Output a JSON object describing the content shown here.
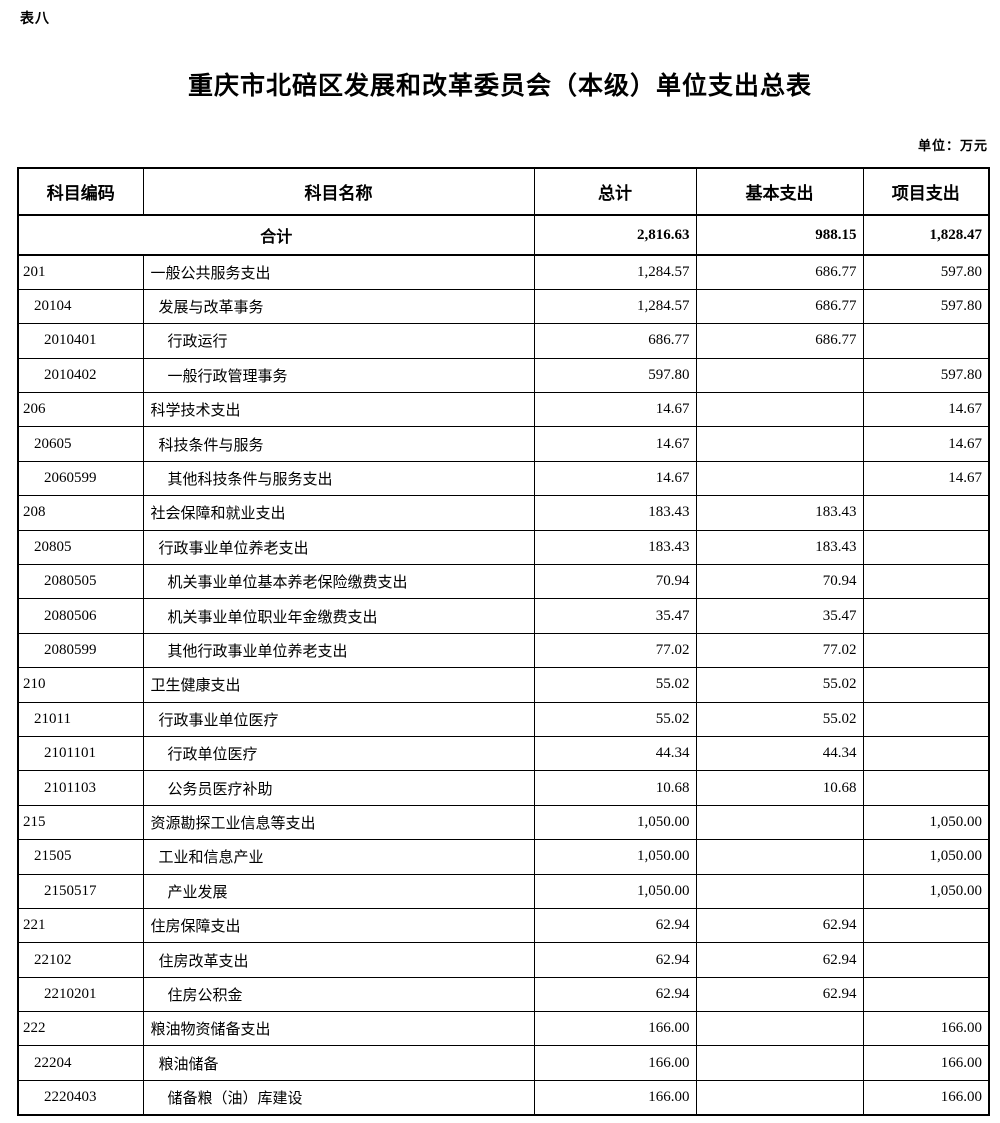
{
  "page": {
    "sheet_label": "表八",
    "title": "重庆市北碚区发展和改革委员会（本级）单位支出总表",
    "unit_note": "单位：万元"
  },
  "table": {
    "columns": [
      "科目编码",
      "科目名称",
      "总计",
      "基本支出",
      "项目支出"
    ],
    "total_row": {
      "label": "合计",
      "total": "2,816.63",
      "basic": "988.15",
      "project": "1,828.47"
    },
    "rows": [
      {
        "code": "201",
        "name": "一般公共服务支出",
        "level": 1,
        "total": "1,284.57",
        "basic": "686.77",
        "project": "597.80"
      },
      {
        "code": "20104",
        "name": "发展与改革事务",
        "level": 2,
        "total": "1,284.57",
        "basic": "686.77",
        "project": "597.80"
      },
      {
        "code": "2010401",
        "name": "行政运行",
        "level": 3,
        "total": "686.77",
        "basic": "686.77",
        "project": ""
      },
      {
        "code": "2010402",
        "name": "一般行政管理事务",
        "level": 3,
        "total": "597.80",
        "basic": "",
        "project": "597.80"
      },
      {
        "code": "206",
        "name": "科学技术支出",
        "level": 1,
        "total": "14.67",
        "basic": "",
        "project": "14.67"
      },
      {
        "code": "20605",
        "name": "科技条件与服务",
        "level": 2,
        "total": "14.67",
        "basic": "",
        "project": "14.67"
      },
      {
        "code": "2060599",
        "name": "其他科技条件与服务支出",
        "level": 3,
        "total": "14.67",
        "basic": "",
        "project": "14.67"
      },
      {
        "code": "208",
        "name": "社会保障和就业支出",
        "level": 1,
        "total": "183.43",
        "basic": "183.43",
        "project": ""
      },
      {
        "code": "20805",
        "name": "行政事业单位养老支出",
        "level": 2,
        "total": "183.43",
        "basic": "183.43",
        "project": ""
      },
      {
        "code": "2080505",
        "name": "机关事业单位基本养老保险缴费支出",
        "level": 3,
        "total": "70.94",
        "basic": "70.94",
        "project": ""
      },
      {
        "code": "2080506",
        "name": "机关事业单位职业年金缴费支出",
        "level": 3,
        "total": "35.47",
        "basic": "35.47",
        "project": ""
      },
      {
        "code": "2080599",
        "name": "其他行政事业单位养老支出",
        "level": 3,
        "total": "77.02",
        "basic": "77.02",
        "project": ""
      },
      {
        "code": "210",
        "name": "卫生健康支出",
        "level": 1,
        "total": "55.02",
        "basic": "55.02",
        "project": ""
      },
      {
        "code": "21011",
        "name": "行政事业单位医疗",
        "level": 2,
        "total": "55.02",
        "basic": "55.02",
        "project": ""
      },
      {
        "code": "2101101",
        "name": "行政单位医疗",
        "level": 3,
        "total": "44.34",
        "basic": "44.34",
        "project": ""
      },
      {
        "code": "2101103",
        "name": "公务员医疗补助",
        "level": 3,
        "total": "10.68",
        "basic": "10.68",
        "project": ""
      },
      {
        "code": "215",
        "name": "资源勘探工业信息等支出",
        "level": 1,
        "total": "1,050.00",
        "basic": "",
        "project": "1,050.00"
      },
      {
        "code": "21505",
        "name": "工业和信息产业",
        "level": 2,
        "total": "1,050.00",
        "basic": "",
        "project": "1,050.00"
      },
      {
        "code": "2150517",
        "name": "产业发展",
        "level": 3,
        "total": "1,050.00",
        "basic": "",
        "project": "1,050.00"
      },
      {
        "code": "221",
        "name": "住房保障支出",
        "level": 1,
        "total": "62.94",
        "basic": "62.94",
        "project": ""
      },
      {
        "code": "22102",
        "name": "住房改革支出",
        "level": 2,
        "total": "62.94",
        "basic": "62.94",
        "project": ""
      },
      {
        "code": "2210201",
        "name": "住房公积金",
        "level": 3,
        "total": "62.94",
        "basic": "62.94",
        "project": ""
      },
      {
        "code": "222",
        "name": "粮油物资储备支出",
        "level": 1,
        "total": "166.00",
        "basic": "",
        "project": "166.00"
      },
      {
        "code": "22204",
        "name": "粮油储备",
        "level": 2,
        "total": "166.00",
        "basic": "",
        "project": "166.00"
      },
      {
        "code": "2220403",
        "name": "储备粮（油）库建设",
        "level": 3,
        "total": "166.00",
        "basic": "",
        "project": "166.00"
      }
    ]
  }
}
